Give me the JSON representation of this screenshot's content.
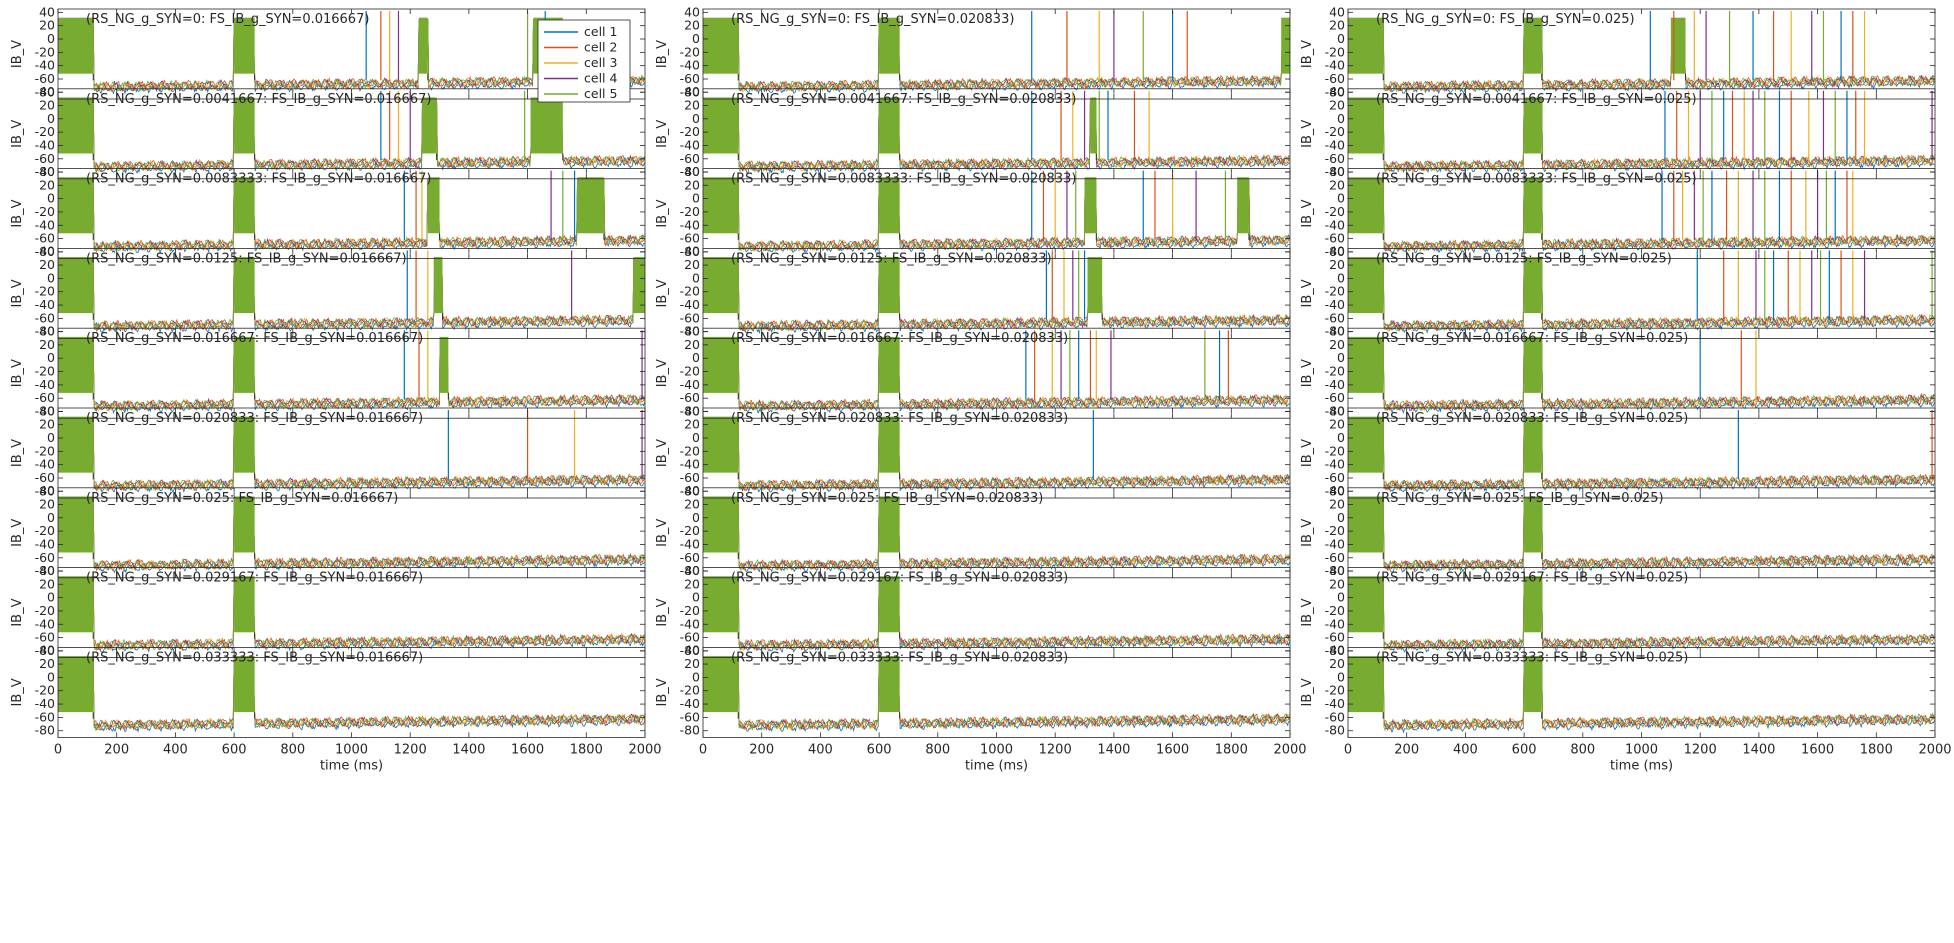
{
  "figure": {
    "xlabel": "time (ms)",
    "ylabel": "IB_V",
    "x_ticks": [
      0,
      200,
      400,
      600,
      800,
      1000,
      1200,
      1400,
      1600,
      1800,
      2000
    ],
    "y_ticks": [
      40,
      20,
      0,
      -20,
      -40,
      -60,
      -80
    ],
    "legend": [
      {
        "label": "cell 1",
        "color": "#0072BD"
      },
      {
        "label": "cell 2",
        "color": "#D95319"
      },
      {
        "label": "cell 3",
        "color": "#EDB120"
      },
      {
        "label": "cell 4",
        "color": "#7E2F8E"
      },
      {
        "label": "cell 5",
        "color": "#77AC30"
      }
    ]
  },
  "chart_data": {
    "type": "line",
    "grid": false,
    "legend_position": "top-right of first panel",
    "xlabel": "time (ms)",
    "ylabel": "IB_V",
    "xlim": [
      0,
      2000
    ],
    "ylim": [
      -90,
      45
    ],
    "rows": [
      "0",
      "0.0041667",
      "0.0083333",
      "0.0125",
      "0.016667",
      "0.020833",
      "0.025",
      "0.029167",
      "0.033333"
    ],
    "cols": [
      "0.016667",
      "0.020833",
      "0.025"
    ],
    "panel_titles": [
      [
        "(RS_NG_g_SYN=0: FS_IB_g_SYN=0.016667)",
        "(RS_NG_g_SYN=0: FS_IB_g_SYN=0.020833)",
        "(RS_NG_g_SYN=0: FS_IB_g_SYN=0.025)"
      ],
      [
        "(RS_NG_g_SYN=0.0041667: FS_IB_g_SYN=0.016667)",
        "(RS_NG_g_SYN=0.0041667: FS_IB_g_SYN=0.020833)",
        "(RS_NG_g_SYN=0.0041667: FS_IB_g_SYN=0.025)"
      ],
      [
        "(RS_NG_g_SYN=0.0083333: FS_IB_g_SYN=0.016667)",
        "(RS_NG_g_SYN=0.0083333: FS_IB_g_SYN=0.020833)",
        "(RS_NG_g_SYN=0.0083333: FS_IB_g_SYN=0.025)"
      ],
      [
        "(RS_NG_g_SYN=0.0125: FS_IB_g_SYN=0.016667)",
        "(RS_NG_g_SYN=0.0125: FS_IB_g_SYN=0.020833)",
        "(RS_NG_g_SYN=0.0125: FS_IB_g_SYN=0.025)"
      ],
      [
        "(RS_NG_g_SYN=0.016667: FS_IB_g_SYN=0.016667)",
        "(RS_NG_g_SYN=0.016667: FS_IB_g_SYN=0.020833)",
        "(RS_NG_g_SYN=0.016667: FS_IB_g_SYN=0.025)"
      ],
      [
        "(RS_NG_g_SYN=0.020833: FS_IB_g_SYN=0.016667)",
        "(RS_NG_g_SYN=0.020833: FS_IB_g_SYN=0.020833)",
        "(RS_NG_g_SYN=0.020833: FS_IB_g_SYN=0.025)"
      ],
      [
        "(RS_NG_g_SYN=0.025: FS_IB_g_SYN=0.016667)",
        "(RS_NG_g_SYN=0.025: FS_IB_g_SYN=0.020833)",
        "(RS_NG_g_SYN=0.025: FS_IB_g_SYN=0.025)"
      ],
      [
        "(RS_NG_g_SYN=0.029167: FS_IB_g_SYN=0.016667)",
        "(RS_NG_g_SYN=0.029167: FS_IB_g_SYN=0.020833)",
        "(RS_NG_g_SYN=0.029167: FS_IB_g_SYN=0.025)"
      ],
      [
        "(RS_NG_g_SYN=0.033333: FS_IB_g_SYN=0.016667)",
        "(RS_NG_g_SYN=0.033333: FS_IB_g_SYN=0.020833)",
        "(RS_NG_g_SYN=0.033333: FS_IB_g_SYN=0.025)"
      ]
    ],
    "bursts": [
      [
        [
          [
            0,
            120
          ],
          [
            600,
            670
          ],
          [
            1230,
            1260
          ],
          [
            1620,
            1720
          ]
        ],
        [
          [
            0,
            120
          ],
          [
            600,
            670
          ],
          [
            1970,
            2000
          ]
        ],
        [
          [
            0,
            120
          ],
          [
            600,
            660
          ],
          [
            1100,
            1150
          ]
        ]
      ],
      [
        [
          [
            0,
            120
          ],
          [
            600,
            670
          ],
          [
            1240,
            1290
          ],
          [
            1610,
            1720
          ]
        ],
        [
          [
            0,
            120
          ],
          [
            600,
            670
          ],
          [
            1320,
            1340
          ]
        ],
        [
          [
            0,
            120
          ],
          [
            600,
            660
          ]
        ]
      ],
      [
        [
          [
            0,
            120
          ],
          [
            600,
            670
          ],
          [
            1260,
            1300
          ],
          [
            1770,
            1860
          ]
        ],
        [
          [
            0,
            120
          ],
          [
            600,
            670
          ],
          [
            1300,
            1340
          ],
          [
            1820,
            1860
          ]
        ],
        [
          [
            0,
            120
          ],
          [
            600,
            660
          ]
        ]
      ],
      [
        [
          [
            0,
            120
          ],
          [
            600,
            670
          ],
          [
            1280,
            1310
          ],
          [
            1960,
            2000
          ]
        ],
        [
          [
            0,
            120
          ],
          [
            600,
            670
          ],
          [
            1310,
            1360
          ]
        ],
        [
          [
            0,
            120
          ],
          [
            600,
            660
          ]
        ]
      ],
      [
        [
          [
            0,
            120
          ],
          [
            600,
            670
          ],
          [
            1300,
            1330
          ]
        ],
        [
          [
            0,
            120
          ],
          [
            600,
            670
          ]
        ],
        [
          [
            0,
            120
          ],
          [
            600,
            660
          ]
        ]
      ],
      [
        [
          [
            0,
            120
          ],
          [
            600,
            670
          ]
        ],
        [
          [
            0,
            120
          ],
          [
            600,
            670
          ]
        ],
        [
          [
            0,
            120
          ],
          [
            600,
            660
          ]
        ]
      ],
      [
        [
          [
            0,
            120
          ],
          [
            600,
            670
          ]
        ],
        [
          [
            0,
            120
          ],
          [
            600,
            670
          ]
        ],
        [
          [
            0,
            120
          ],
          [
            600,
            660
          ]
        ]
      ],
      [
        [
          [
            0,
            120
          ],
          [
            600,
            670
          ]
        ],
        [
          [
            0,
            120
          ],
          [
            600,
            670
          ]
        ],
        [
          [
            0,
            120
          ],
          [
            600,
            660
          ]
        ]
      ],
      [
        [
          [
            0,
            120
          ],
          [
            600,
            670
          ]
        ],
        [
          [
            0,
            120
          ],
          [
            600,
            670
          ]
        ],
        [
          [
            0,
            120
          ],
          [
            600,
            660
          ]
        ]
      ]
    ],
    "spikes": [
      [
        [
          1050,
          1100,
          1130,
          1160,
          1600,
          1660
        ],
        [
          1120,
          1240,
          1350,
          1400,
          1500,
          1600,
          1650
        ],
        [
          1030,
          1110,
          1180,
          1220,
          1300,
          1380,
          1450,
          1510,
          1580,
          1620,
          1680,
          1720,
          1760
        ]
      ],
      [
        [
          1100,
          1130,
          1160,
          1200,
          1590
        ],
        [
          1120,
          1220,
          1260,
          1300,
          1350,
          1380,
          1470,
          1520
        ],
        [
          1080,
          1120,
          1160,
          1200,
          1240,
          1280,
          1310,
          1350,
          1380,
          1420,
          1470,
          1510,
          1570,
          1620,
          1660,
          1700,
          1730,
          1760,
          1990
        ]
      ],
      [
        [
          1180,
          1220,
          1240,
          1680,
          1720,
          1760
        ],
        [
          1120,
          1160,
          1200,
          1240,
          1270,
          1500,
          1540,
          1600,
          1680,
          1780
        ],
        [
          1070,
          1110,
          1140,
          1180,
          1210,
          1240,
          1290,
          1330,
          1380,
          1420,
          1470,
          1510,
          1560,
          1600,
          1630,
          1660,
          1700,
          1720
        ]
      ],
      [
        [
          1190,
          1220,
          1260,
          1750
        ],
        [
          1170,
          1190,
          1230,
          1260,
          1280,
          1300
        ],
        [
          1190,
          1280,
          1330,
          1390,
          1420,
          1450,
          1500,
          1540,
          1580,
          1610,
          1640,
          1680,
          1720,
          1760,
          1990
        ]
      ],
      [
        [
          1180,
          1230,
          1260,
          1990
        ],
        [
          1100,
          1130,
          1190,
          1220,
          1250,
          1280,
          1320,
          1340,
          1390,
          1710,
          1760,
          1790
        ],
        [
          1200,
          1340,
          1390
        ]
      ],
      [
        [
          1330,
          1600,
          1760,
          1990
        ],
        [
          1330
        ],
        [
          1330,
          1990
        ]
      ],
      [
        [],
        [],
        []
      ],
      [
        [],
        [],
        []
      ],
      [
        [],
        [],
        []
      ]
    ]
  }
}
